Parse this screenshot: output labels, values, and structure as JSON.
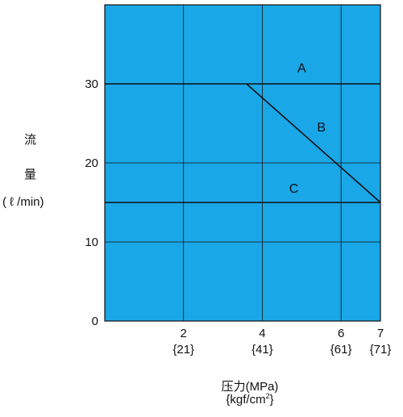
{
  "chart_data": {
    "type": "line",
    "ylabel_chars": [
      "流",
      "量",
      "( ℓ /min)"
    ],
    "xlabel": "压力(MPa)",
    "xlabel_sub": "{kgf/cm",
    "xlabel_sub_sup": "2",
    "xlabel_sub_end": "}",
    "xlim": [
      0,
      7
    ],
    "ylim": [
      0,
      40
    ],
    "x_ticks": [
      {
        "value": 2,
        "label": "2",
        "sub": "{21}"
      },
      {
        "value": 4,
        "label": "4",
        "sub": "{41}"
      },
      {
        "value": 6,
        "label": "6",
        "sub": "{61}"
      },
      {
        "value": 7,
        "label": "7",
        "sub": "{71}"
      }
    ],
    "y_ticks": [
      {
        "value": 0,
        "label": "0"
      },
      {
        "value": 10,
        "label": "10"
      },
      {
        "value": 20,
        "label": "20"
      },
      {
        "value": 30,
        "label": "30"
      }
    ],
    "grid": true,
    "plot_color": "#1AA7E8",
    "line_color": "#111111",
    "series": [
      {
        "name": "A",
        "points": [
          [
            0,
            30
          ],
          [
            7,
            30
          ]
        ],
        "label_at": [
          5,
          31.5
        ]
      },
      {
        "name": "B",
        "points": [
          [
            3.6,
            30
          ],
          [
            7,
            15
          ]
        ],
        "label_at": [
          5.5,
          24
        ]
      },
      {
        "name": "C",
        "points": [
          [
            0,
            15
          ],
          [
            7,
            15
          ]
        ],
        "label_at": [
          4.8,
          16.2
        ]
      }
    ]
  }
}
